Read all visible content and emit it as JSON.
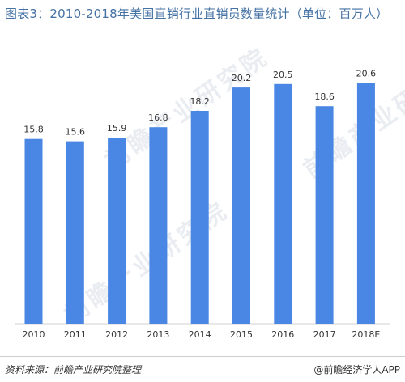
{
  "title": "图表3：2010-2018年美国直销行业直销员数量统计（单位：百万人）",
  "watermark": "前瞻产业研究院",
  "source": "资料来源：前瞻产业研究院整理",
  "brand": "@前瞻经济学人APP",
  "colors": {
    "bar": "#4a86e3",
    "title": "#4472a4"
  },
  "chart_data": {
    "type": "bar",
    "title": "图表3：2010-2018年美国直销行业直销员数量统计（单位：百万人）",
    "categories": [
      "2010",
      "2011",
      "2012",
      "2013",
      "2014",
      "2015",
      "2016",
      "2017",
      "2018E"
    ],
    "values": [
      15.8,
      15.6,
      15.9,
      16.8,
      18.2,
      20.2,
      20.5,
      18.6,
      20.6
    ],
    "grid": false,
    "legend": "none"
  }
}
